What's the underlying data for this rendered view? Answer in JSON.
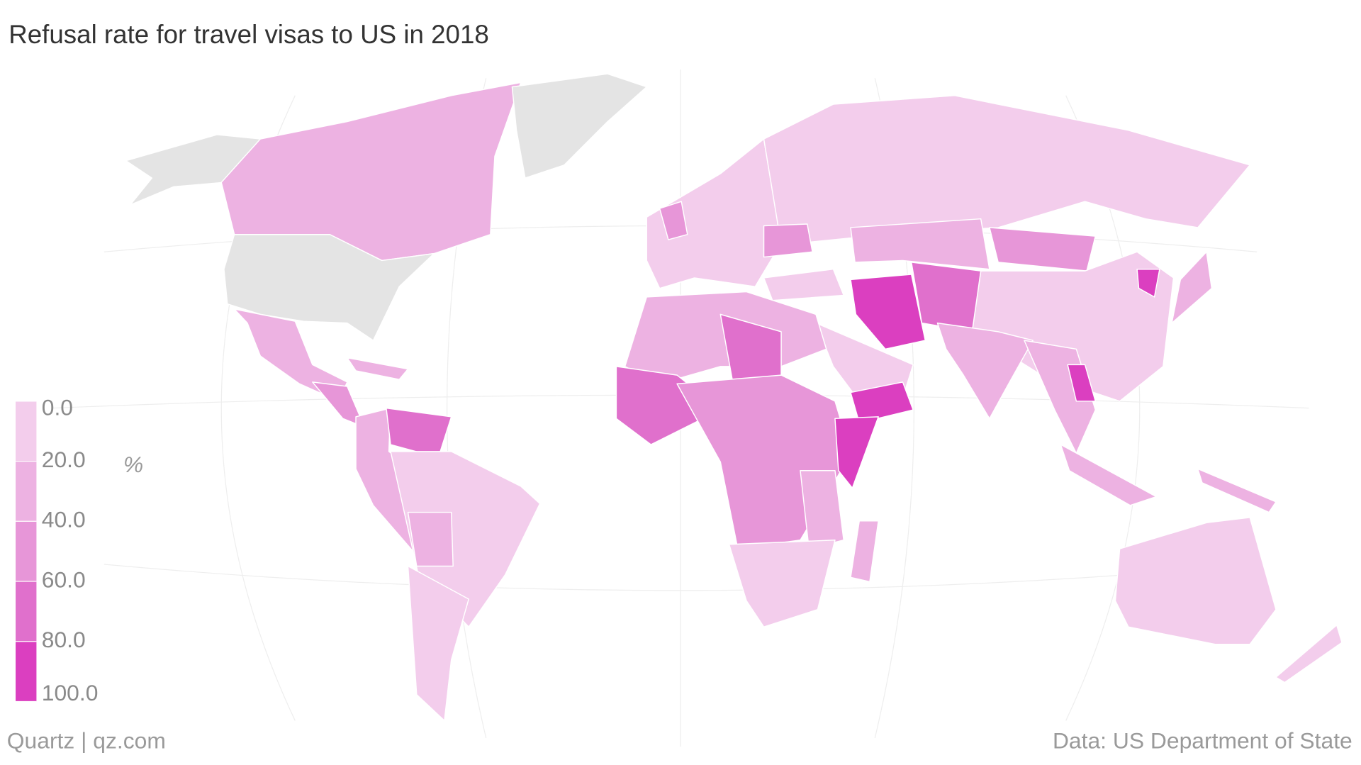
{
  "chart_data": {
    "type": "choropleth",
    "title": "Refusal rate for travel visas to US in 2018",
    "legend_title": "%",
    "legend": {
      "ticks": [
        {
          "value": 0,
          "label": "0.0"
        },
        {
          "value": 20,
          "label": "20.0"
        },
        {
          "value": 40,
          "label": "40.0"
        },
        {
          "value": 60,
          "label": "60.0"
        },
        {
          "value": 80,
          "label": "80.0"
        },
        {
          "value": 100,
          "label": "100.0"
        }
      ],
      "colors": [
        "#f3cdec",
        "#edb2e2",
        "#e796d8",
        "#e070cc",
        "#db3fc0"
      ],
      "no_data_color": "#e4e4e4"
    },
    "source_left": "Quartz | qz.com",
    "source_right": "Data: US Department of State"
  }
}
